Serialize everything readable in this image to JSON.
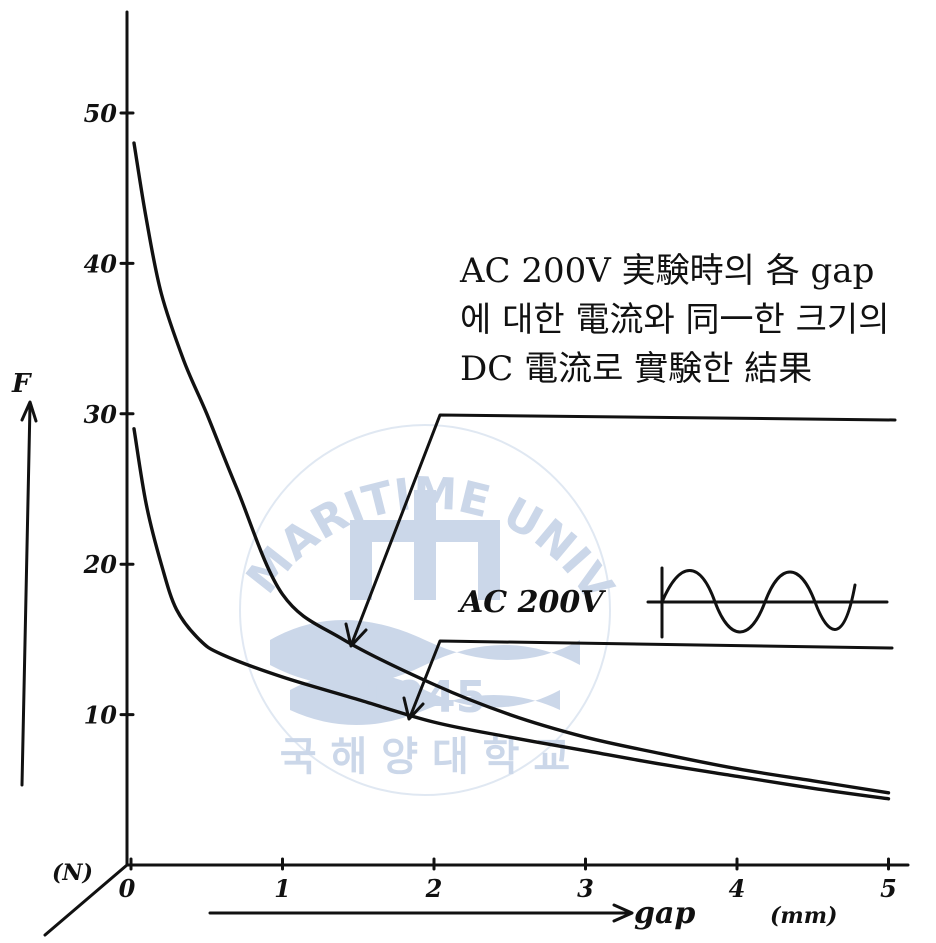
{
  "chart_data": {
    "type": "line",
    "ylabel": "F",
    "yunit": "(N)",
    "xlabel": "gap",
    "xunit": "(mm)",
    "xlim": [
      0,
      5
    ],
    "ylim": [
      0,
      50
    ],
    "x_ticks": [
      "0",
      "1",
      "2",
      "3",
      "4",
      "5"
    ],
    "y_ticks": [
      "10",
      "20",
      "30",
      "40",
      "50"
    ],
    "series": [
      {
        "x": [
          0.02,
          0.1,
          0.2,
          0.35,
          0.5,
          0.7,
          1.0,
          1.4,
          2.0,
          2.5,
          3.0,
          3.5,
          4.0,
          4.5,
          5.0
        ],
        "values": [
          48,
          43,
          38,
          33.5,
          30,
          25,
          18,
          15,
          12,
          10,
          8.5,
          7.4,
          6.4,
          5.6,
          4.8
        ]
      },
      {
        "x": [
          0.02,
          0.1,
          0.2,
          0.3,
          0.45,
          0.6,
          1.0,
          1.5,
          2.0,
          2.5,
          3.0,
          3.5,
          4.0,
          4.5,
          5.0
        ],
        "values": [
          29,
          24,
          20,
          17,
          15,
          14,
          12.5,
          11,
          9.5,
          8.5,
          7.6,
          6.7,
          5.9,
          5.1,
          4.4
        ]
      }
    ],
    "annotation_text": [
      "AC 200V 実験時의 各 gap",
      "에 대한 電流와 同一한 크기의",
      "DC 電流로 實験한 結果"
    ],
    "ac_label": "AC 200V"
  },
  "watermark": {
    "arc_text": "KOREA MARITIME UNIVERSITY",
    "korean_text": "국 해 양 대 학 교",
    "year": "1945",
    "color": "#c9d5e8"
  }
}
